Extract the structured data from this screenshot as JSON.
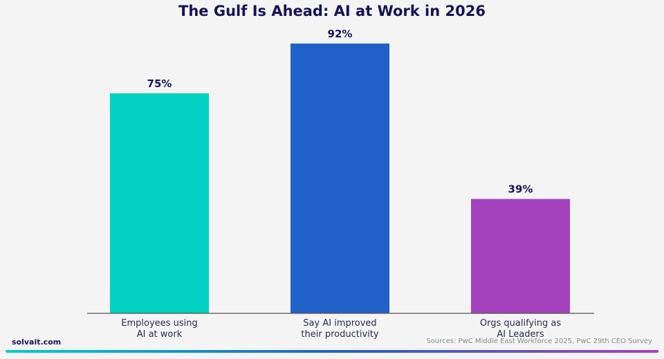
{
  "chart_data": {
    "type": "bar",
    "title": "The Gulf Is Ahead: AI at Work in 2026",
    "categories": [
      [
        "Employees using",
        "AI at work"
      ],
      [
        "Say AI improved",
        "their productivity"
      ],
      [
        "Orgs qualifying as",
        "AI Leaders"
      ]
    ],
    "values": [
      75,
      92,
      39
    ],
    "data_labels": [
      "75%",
      "92%",
      "39%"
    ],
    "colors": [
      "#00d1c1",
      "#2162c9",
      "#a442be"
    ],
    "ylim": [
      0,
      100
    ],
    "xlabel": "",
    "ylabel": "",
    "grid": false,
    "legend": "none"
  },
  "footer": {
    "brand": "solvait.com",
    "sources": "Sources: PwC Middle East Workforce 2025, PwC 29th CEO Survey"
  },
  "theme": {
    "title_color": "#14145a",
    "axis_color": "#555555",
    "label_color": "#14145a",
    "gradient_start": "#00d1c1",
    "gradient_mid": "#2162c9",
    "gradient_end": "#a442be"
  }
}
